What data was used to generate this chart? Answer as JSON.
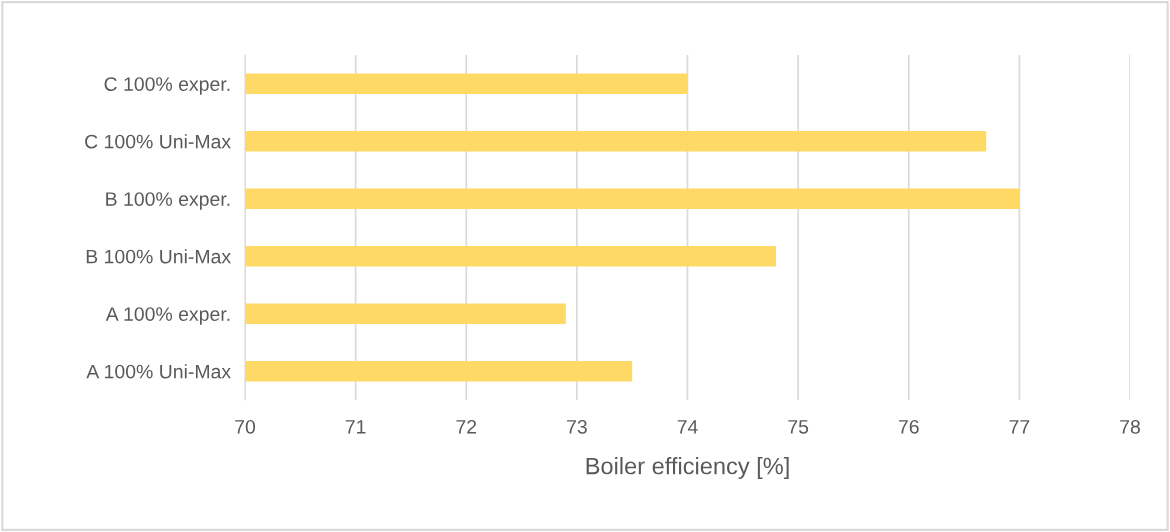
{
  "chart_data": {
    "type": "bar",
    "orientation": "horizontal",
    "xlabel": "Boiler efficiency [%]",
    "categories": [
      "C 100% exper.",
      "C 100% Uni-Max",
      "B 100% exper.",
      "B 100% Uni-Max",
      "A 100% exper.",
      "A 100% Uni-Max"
    ],
    "values": [
      74.0,
      76.7,
      77.0,
      74.8,
      72.9,
      73.5
    ],
    "color": "#ffd966",
    "xlim": [
      70,
      78
    ],
    "xticks": [
      70,
      71,
      72,
      73,
      74,
      75,
      76,
      77,
      78
    ],
    "grid": "x"
  }
}
